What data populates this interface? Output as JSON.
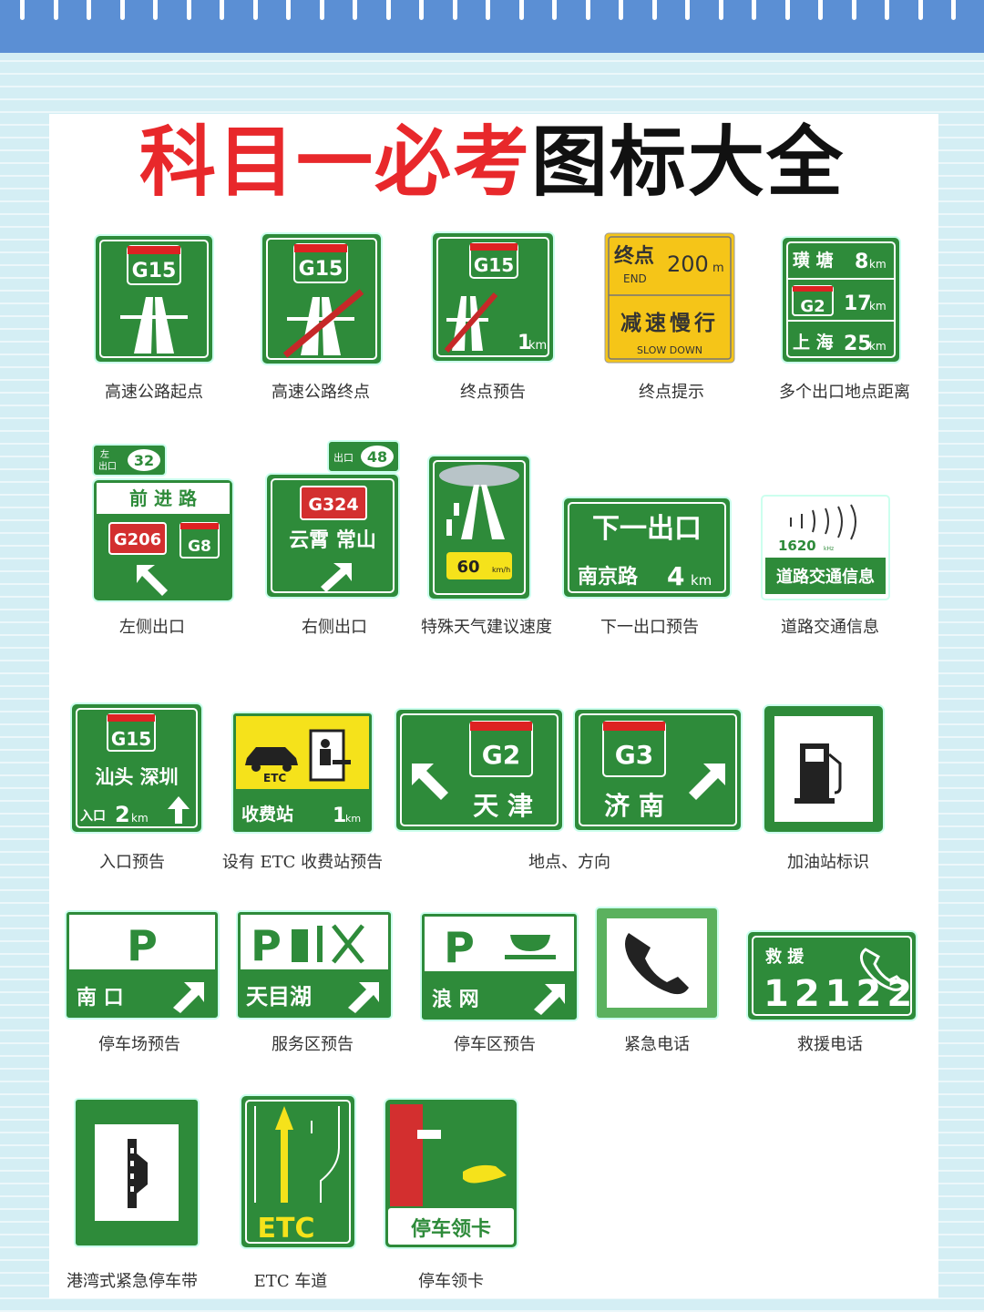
{
  "title": {
    "red": "科目一必考",
    "black": "图标大全"
  },
  "colors": {
    "sign_green": "#2e8b3a",
    "title_red": "#e8282b",
    "top_bar": "#5b8fd4",
    "warn_yellow": "#f5c518"
  },
  "signs": [
    {
      "route": "G15",
      "caption": "高速公路起点"
    },
    {
      "route": "G15",
      "caption": "高速公路终点"
    },
    {
      "route": "G15",
      "distance": "1",
      "unit": "km",
      "caption": "终点预告"
    },
    {
      "line1": "终点",
      "dist": "200",
      "unit": "m",
      "end": "END",
      "line2": "减速慢行",
      "slow": "SLOW DOWN",
      "caption": "终点提示"
    },
    {
      "rows": [
        {
          "name": "璜 塘",
          "km": "8"
        },
        {
          "name": "G2",
          "km": "17"
        },
        {
          "name": "上 海",
          "km": "25"
        }
      ],
      "unit": "km",
      "caption": "多个出口地点距离"
    },
    {
      "side": "左",
      "exit": "出口",
      "num": "32",
      "road": "前 进 路",
      "route1": "G206",
      "route2": "G8",
      "caption": "左侧出口"
    },
    {
      "exit": "出口",
      "num": "48",
      "route": "G324",
      "places": "云霄 常山",
      "caption": "右侧出口"
    },
    {
      "speed": "60",
      "unit": "km/h",
      "caption": "特殊天气建议速度"
    },
    {
      "line1": "下一出口",
      "road": "南京路",
      "km": "4",
      "unit": "km",
      "caption": "下一出口预告"
    },
    {
      "num": "1620",
      "unit": "kHz",
      "label": "道路交通信息",
      "caption": "道路交通信息"
    },
    {
      "route": "G15",
      "places": "汕头  深圳",
      "entry": "入口",
      "km": "2",
      "unit": "km",
      "caption": "入口预告"
    },
    {
      "etc": "ETC",
      "label": "收费站",
      "km": "1",
      "unit": "km",
      "caption": "设有 ETC 收费站预告"
    },
    {
      "route": "G2",
      "place": "天 津"
    },
    {
      "route": "G3",
      "place": "济 南",
      "caption": "地点、方向"
    },
    {
      "caption": "加油站标识"
    },
    {
      "p": "P",
      "label": "南  口",
      "caption": "停车场预告"
    },
    {
      "p": "P",
      "label": "天目湖",
      "caption": "服务区预告"
    },
    {
      "p": "P",
      "label": "浪  网",
      "caption": "停车区预告"
    },
    {
      "caption": "紧急电话"
    },
    {
      "label": "救 援",
      "num": "12122",
      "caption": "救援电话"
    },
    {
      "caption": "港湾式紧急停车带"
    },
    {
      "label": "ETC",
      "caption": "ETC 车道"
    },
    {
      "label": "停车领卡",
      "caption": "停车领卡"
    }
  ]
}
